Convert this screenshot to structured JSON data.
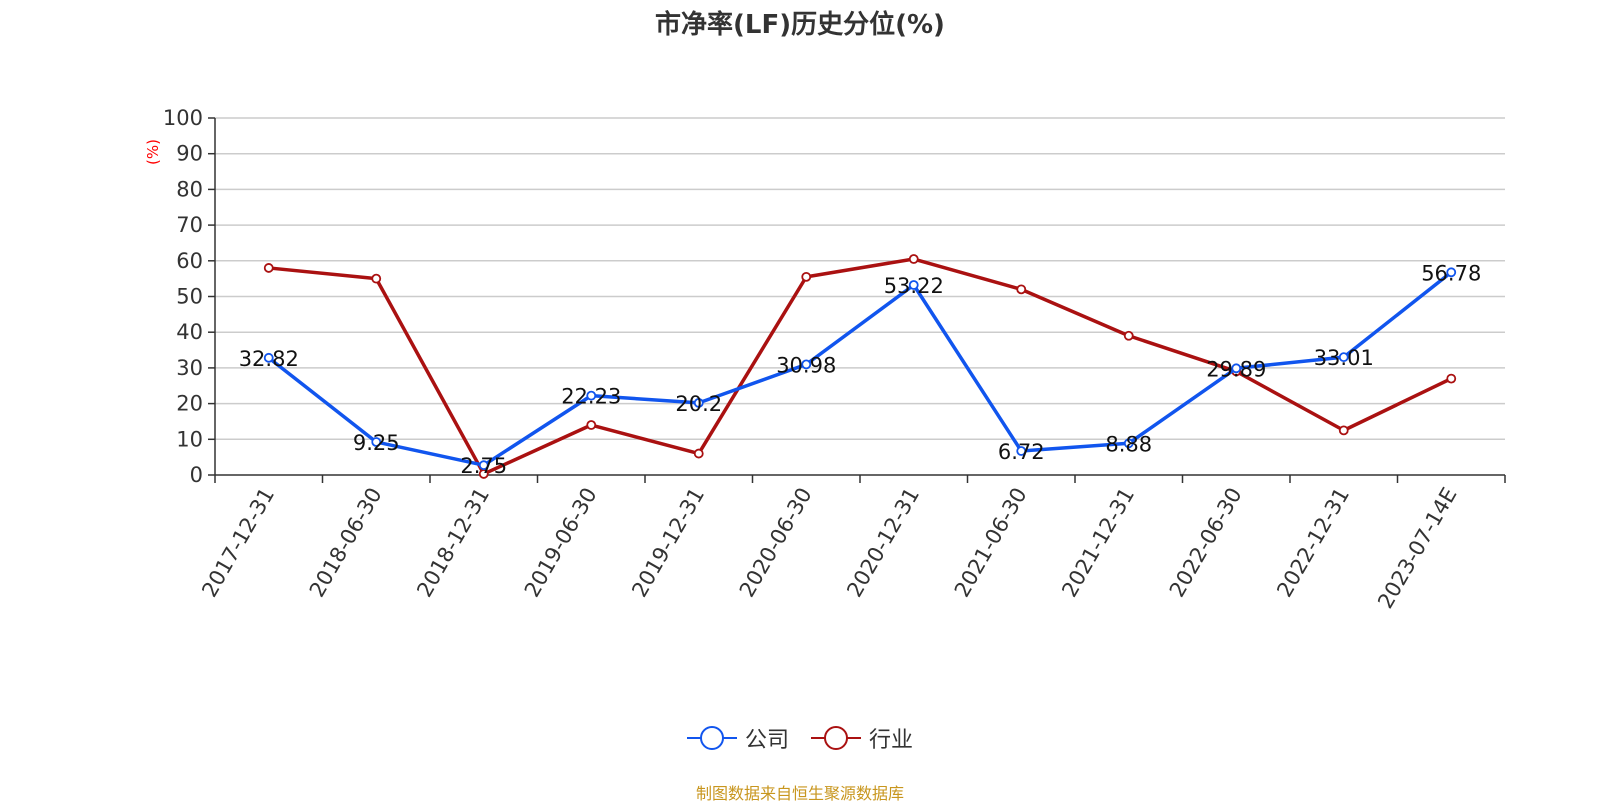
{
  "chart_data": {
    "type": "line",
    "title": "市净率(LF)历史分位(%)",
    "ylabel": "(%)",
    "xlabel": "",
    "ylim": [
      0,
      100
    ],
    "yticks": [
      0,
      10,
      20,
      30,
      40,
      50,
      60,
      70,
      80,
      90,
      100
    ],
    "grid": true,
    "legend_position": "bottom",
    "categories": [
      "2017-12-31",
      "2018-06-30",
      "2018-12-31",
      "2019-06-30",
      "2019-12-31",
      "2020-06-30",
      "2020-12-31",
      "2021-06-30",
      "2021-12-31",
      "2022-06-30",
      "2022-12-31",
      "2023-07-14E"
    ],
    "series": [
      {
        "name": "公司",
        "color": "#1155ee",
        "values": [
          32.82,
          9.25,
          2.75,
          22.23,
          20.2,
          30.98,
          53.22,
          6.72,
          8.88,
          29.89,
          33.01,
          56.78
        ],
        "labels": [
          "32.82",
          "9.25",
          "2.75",
          "22.23",
          "20.2",
          "30.98",
          "53.22",
          "6.72",
          "8.88",
          "29.89",
          "33.01",
          "56.78"
        ]
      },
      {
        "name": "行业",
        "color": "#aa1111",
        "values": [
          58.0,
          55.0,
          0.3,
          14.0,
          6.0,
          55.5,
          60.5,
          52.0,
          39.0,
          29.0,
          12.5,
          27.0
        ]
      }
    ]
  },
  "footer": {
    "source": "制图数据来自恒生聚源数据库"
  },
  "style": {
    "ylabel_color": "#ff0000",
    "grid_color": "#cccccc",
    "axis_color": "#333333"
  }
}
